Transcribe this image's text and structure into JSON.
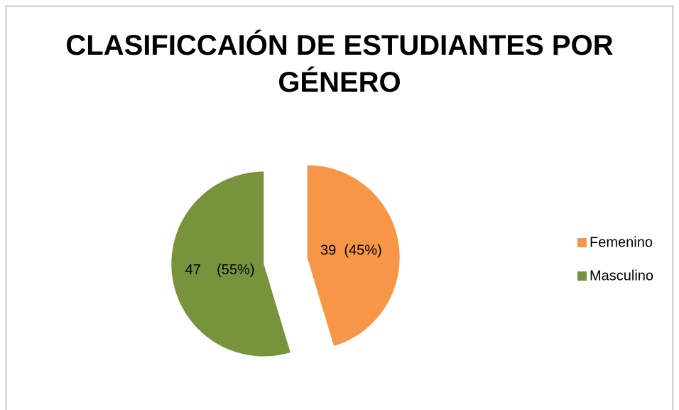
{
  "chart_data": {
    "type": "pie",
    "title": "CLASIFICCAIÓN DE ESTUDIANTES POR GÉNERO",
    "categories": [
      "Femenino",
      "Masculino"
    ],
    "values": [
      39,
      47
    ],
    "value_labels": [
      "39  (45%)",
      "47    (55%)"
    ],
    "colors": [
      "#f79646",
      "#77933c"
    ],
    "exploded": true,
    "legend": "right"
  }
}
